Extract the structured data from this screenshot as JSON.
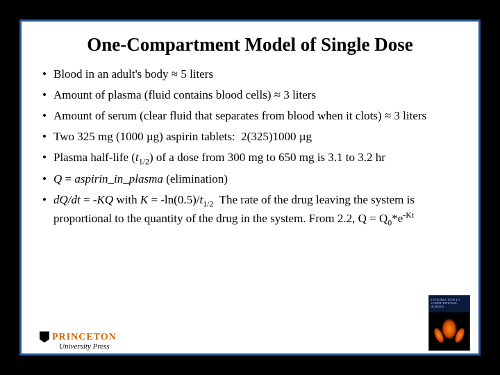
{
  "title": "One-Compartment Model of Single Dose",
  "bullets": [
    "Blood in an adult's body ≈ 5 liters",
    "Amount of plasma (fluid contains blood cells) ≈ 3 liters",
    "Amount of serum (clear fluid that separates from blood when it clots) ≈ 3 liters",
    "Two 325 mg (1000 µg) aspirin tablets:  2(325)1000 µg",
    "Plasma half-life (t_1/2) of a dose from 300 mg to 650 mg is 3.1 to 3.2 hr",
    "Q = aspirin_in_plasma (elimination)",
    "dQ/dt = -KQ with K = -ln(0.5)/t_1/2  The rate of the drug leaving the system is proportional to the quantity of the drug in the system. From 2.2, Q = Q_0*e^-Kt"
  ],
  "logo": {
    "main": "PRINCETON",
    "sub": "University Press"
  },
  "book": {
    "topline": "INTRODUCTION TO",
    "subline": "COMPUTATIONAL SCIENCE"
  },
  "colors": {
    "slide_bg": "#ffffff",
    "outer_bg": "#000000",
    "border": "#2a5599",
    "logo_main": "#cc6600"
  }
}
